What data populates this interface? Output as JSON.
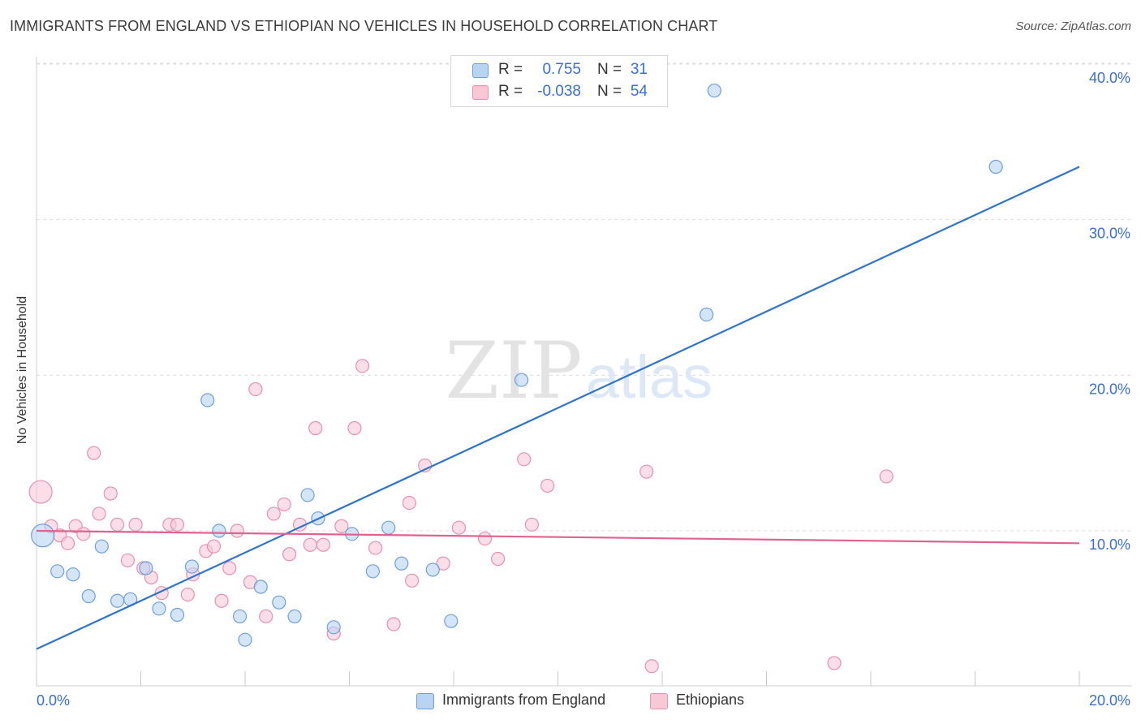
{
  "title": "IMMIGRANTS FROM ENGLAND VS ETHIOPIAN NO VEHICLES IN HOUSEHOLD CORRELATION CHART",
  "source": "Source: ZipAtlas.com",
  "watermark": {
    "zip": "ZIP",
    "atlas": "atlas"
  },
  "colors": {
    "blue_fill": "#b9d3f3",
    "blue_stroke": "#6e9fdc",
    "blue_line": "#2f73cc",
    "pink_fill": "#f9c8d7",
    "pink_stroke": "#e891ae",
    "pink_line": "#e0628f",
    "tick_text": "#3a6fd0",
    "grid": "#dcdcdc"
  },
  "legend_top": {
    "rows": [
      {
        "r_label": "R =",
        "r_value": "0.755",
        "n_label": "N =",
        "n_value": "31"
      },
      {
        "r_label": "R =",
        "r_value": "-0.038",
        "n_label": "N =",
        "n_value": "54"
      }
    ]
  },
  "legend_bottom": {
    "items": [
      "Immigrants from England",
      "Ethiopians"
    ]
  },
  "chart_data": {
    "type": "scatter",
    "title": "IMMIGRANTS FROM ENGLAND VS ETHIOPIAN NO VEHICLES IN HOUSEHOLD CORRELATION CHART",
    "xlabel": "",
    "ylabel": "No Vehicles in Household",
    "xlim": [
      0,
      20
    ],
    "ylim": [
      0,
      42
    ],
    "x_tick_labels": [
      "0.0%",
      "20.0%"
    ],
    "y_ticks": [
      10,
      20,
      30,
      40
    ],
    "y_tick_labels": [
      "10.0%",
      "20.0%",
      "30.0%",
      "40.0%"
    ],
    "grid": "horizontal dashed",
    "legend_position": "top-center and bottom",
    "series": [
      {
        "name": "Immigrants from England",
        "color": "#6e9fdc",
        "r": 0.755,
        "n": 31,
        "trend": {
          "x": [
            0,
            20
          ],
          "y": [
            2.4,
            33.4
          ]
        },
        "points": [
          {
            "x": 0.12,
            "y": 9.7,
            "big": true
          },
          {
            "x": 0.4,
            "y": 7.4
          },
          {
            "x": 0.7,
            "y": 7.2
          },
          {
            "x": 1.0,
            "y": 5.8
          },
          {
            "x": 1.25,
            "y": 9.0
          },
          {
            "x": 1.55,
            "y": 5.5
          },
          {
            "x": 1.8,
            "y": 5.6
          },
          {
            "x": 2.1,
            "y": 7.6
          },
          {
            "x": 2.35,
            "y": 5.0
          },
          {
            "x": 2.7,
            "y": 4.6
          },
          {
            "x": 2.98,
            "y": 7.7
          },
          {
            "x": 3.28,
            "y": 18.4
          },
          {
            "x": 3.5,
            "y": 10.0
          },
          {
            "x": 3.9,
            "y": 4.5
          },
          {
            "x": 4.0,
            "y": 3.0
          },
          {
            "x": 4.3,
            "y": 6.4
          },
          {
            "x": 4.65,
            "y": 5.4
          },
          {
            "x": 4.95,
            "y": 4.5
          },
          {
            "x": 5.2,
            "y": 12.3
          },
          {
            "x": 5.4,
            "y": 10.8
          },
          {
            "x": 5.7,
            "y": 3.8
          },
          {
            "x": 6.05,
            "y": 9.8
          },
          {
            "x": 6.45,
            "y": 7.4
          },
          {
            "x": 6.75,
            "y": 10.2
          },
          {
            "x": 7.0,
            "y": 7.9
          },
          {
            "x": 7.6,
            "y": 7.5
          },
          {
            "x": 7.95,
            "y": 4.2
          },
          {
            "x": 9.3,
            "y": 19.7
          },
          {
            "x": 12.85,
            "y": 23.9
          },
          {
            "x": 13.0,
            "y": 38.3
          },
          {
            "x": 18.4,
            "y": 33.4
          }
        ]
      },
      {
        "name": "Ethiopians",
        "color": "#e891ae",
        "r": -0.038,
        "n": 54,
        "trend": {
          "x": [
            0,
            20
          ],
          "y": [
            10.0,
            9.2
          ]
        },
        "points": [
          {
            "x": 0.08,
            "y": 12.5,
            "big": true
          },
          {
            "x": 0.28,
            "y": 10.3
          },
          {
            "x": 0.45,
            "y": 9.7
          },
          {
            "x": 0.6,
            "y": 9.2
          },
          {
            "x": 0.75,
            "y": 10.3
          },
          {
            "x": 0.9,
            "y": 9.8
          },
          {
            "x": 1.1,
            "y": 15.0
          },
          {
            "x": 1.2,
            "y": 11.1
          },
          {
            "x": 1.42,
            "y": 12.4
          },
          {
            "x": 1.55,
            "y": 10.4
          },
          {
            "x": 1.75,
            "y": 8.1
          },
          {
            "x": 1.9,
            "y": 10.4
          },
          {
            "x": 2.05,
            "y": 7.6
          },
          {
            "x": 2.2,
            "y": 7.0
          },
          {
            "x": 2.4,
            "y": 6.0
          },
          {
            "x": 2.55,
            "y": 10.4
          },
          {
            "x": 2.7,
            "y": 10.4
          },
          {
            "x": 2.9,
            "y": 5.9
          },
          {
            "x": 3.0,
            "y": 7.2
          },
          {
            "x": 3.25,
            "y": 8.7
          },
          {
            "x": 3.4,
            "y": 9.0
          },
          {
            "x": 3.55,
            "y": 5.5
          },
          {
            "x": 3.7,
            "y": 7.6
          },
          {
            "x": 3.85,
            "y": 10.0
          },
          {
            "x": 4.1,
            "y": 6.7
          },
          {
            "x": 4.2,
            "y": 19.1
          },
          {
            "x": 4.4,
            "y": 4.5
          },
          {
            "x": 4.55,
            "y": 11.1
          },
          {
            "x": 4.75,
            "y": 11.7
          },
          {
            "x": 4.85,
            "y": 8.5
          },
          {
            "x": 5.05,
            "y": 10.4
          },
          {
            "x": 5.25,
            "y": 9.1
          },
          {
            "x": 5.35,
            "y": 16.6
          },
          {
            "x": 5.5,
            "y": 9.1
          },
          {
            "x": 5.7,
            "y": 3.4
          },
          {
            "x": 5.85,
            "y": 10.3
          },
          {
            "x": 6.1,
            "y": 16.6
          },
          {
            "x": 6.25,
            "y": 20.6
          },
          {
            "x": 6.5,
            "y": 8.9
          },
          {
            "x": 6.85,
            "y": 4.0
          },
          {
            "x": 7.15,
            "y": 11.8
          },
          {
            "x": 7.2,
            "y": 6.8
          },
          {
            "x": 7.45,
            "y": 14.2
          },
          {
            "x": 7.8,
            "y": 7.9
          },
          {
            "x": 8.1,
            "y": 10.2
          },
          {
            "x": 8.6,
            "y": 9.5
          },
          {
            "x": 8.85,
            "y": 8.2
          },
          {
            "x": 9.35,
            "y": 14.6
          },
          {
            "x": 9.5,
            "y": 10.4
          },
          {
            "x": 9.8,
            "y": 12.9
          },
          {
            "x": 11.7,
            "y": 13.8
          },
          {
            "x": 11.8,
            "y": 1.3
          },
          {
            "x": 15.3,
            "y": 1.5
          },
          {
            "x": 16.3,
            "y": 13.5
          }
        ]
      }
    ]
  }
}
